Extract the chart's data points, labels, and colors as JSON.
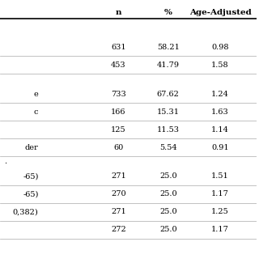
{
  "columns": [
    "n",
    "%",
    "Age-Adjusted"
  ],
  "rows": [
    {
      "label": "",
      "n": "",
      "%": "",
      "age": "",
      "bold": false,
      "is_section": true,
      "section_label": ""
    },
    {
      "label": "",
      "n": "631",
      "%": "58.21",
      "age": "0.98",
      "bold": false
    },
    {
      "label": "",
      "n": "453",
      "%": "41.79",
      "age": "1.58",
      "bold": false
    },
    {
      "label": "",
      "n": "",
      "%": "",
      "age": "",
      "bold": false,
      "is_section": true,
      "section_label": ""
    },
    {
      "label": "e",
      "n": "733",
      "%": "67.62",
      "age": "1.24",
      "bold": true
    },
    {
      "label": "c",
      "n": "166",
      "%": "15.31",
      "age": "1.63",
      "bold": false
    },
    {
      "label": "",
      "n": "125",
      "%": "11.53",
      "age": "1.14",
      "bold": false
    },
    {
      "label": "der",
      "n": "60",
      "%": "5.54",
      "age": "0.91",
      "bold": false
    },
    {
      "label": ".",
      "n": "",
      "%": "",
      "age": "",
      "bold": false,
      "is_section": true,
      "section_label": ""
    },
    {
      "label": "-65)",
      "n": "271",
      "%": "25.0",
      "age": "1.51",
      "bold": false
    },
    {
      "label": "-65)",
      "n": "270",
      "%": "25.0",
      "age": "1.17",
      "bold": false
    },
    {
      "label": "0,382)",
      "n": "271",
      "%": "25.0",
      "age": "1.25",
      "bold": false
    },
    {
      "label": "",
      "n": "272",
      "%": "25.0",
      "age": "1.17",
      "bold": false
    }
  ],
  "bg_color": "#ffffff",
  "header_line_color": "#000000",
  "row_line_color": "#cccccc",
  "font_size": 7,
  "header_font_size": 7.5
}
